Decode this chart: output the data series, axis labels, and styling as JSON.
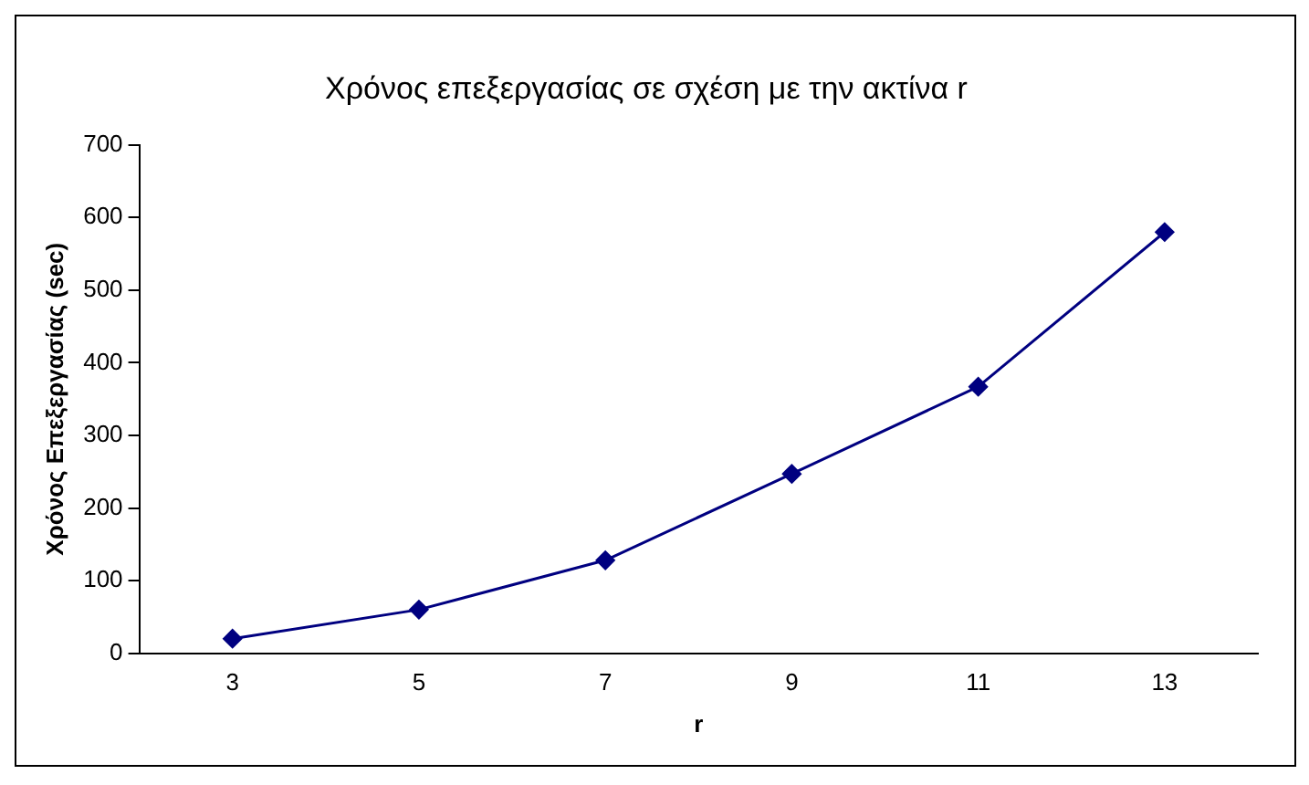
{
  "chart_data": {
    "type": "line",
    "title": "Χρόνος επεξεργασίας σε σχέση με την ακτίνα r",
    "xlabel": "r",
    "ylabel": "Χρόνος Επεξεργασίας (sec)",
    "categories": [
      "3",
      "5",
      "7",
      "9",
      "11",
      "13"
    ],
    "series": [
      {
        "color": "#000080",
        "values": [
          20,
          60,
          128,
          247,
          367,
          580
        ]
      }
    ],
    "ylim": [
      0,
      700
    ],
    "yticks": [
      0,
      100,
      200,
      300,
      400,
      500,
      600,
      700
    ],
    "grid": false,
    "legend": false,
    "marker": "diamond",
    "line_style": "solid"
  }
}
